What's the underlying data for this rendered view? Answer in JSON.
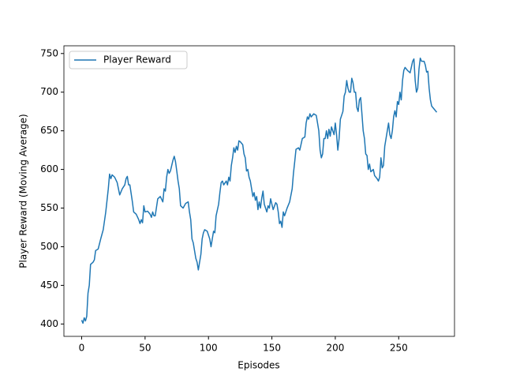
{
  "chart_data": {
    "type": "line",
    "xlabel": "Episodes",
    "ylabel": "Player Reward (Moving Average)",
    "x": [
      0,
      1,
      2,
      3,
      4,
      5,
      6,
      7,
      9,
      10,
      11,
      13,
      15,
      17,
      19,
      21,
      22,
      23,
      24,
      26,
      28,
      29,
      30,
      32,
      34,
      35,
      36,
      37,
      38,
      40,
      41,
      43,
      45,
      46,
      47,
      48,
      49,
      50,
      52,
      54,
      55,
      56,
      57,
      58,
      60,
      62,
      64,
      65,
      66,
      67,
      68,
      69,
      70,
      72,
      73,
      74,
      75,
      76,
      77,
      78,
      80,
      82,
      84,
      85,
      86,
      87,
      88,
      89,
      90,
      91,
      92,
      93,
      94,
      95,
      96,
      97,
      99,
      100,
      101,
      102,
      103,
      104,
      105,
      106,
      108,
      109,
      110,
      111,
      112,
      114,
      115,
      116,
      117,
      118,
      119,
      120,
      121,
      122,
      123,
      124,
      125,
      127,
      128,
      129,
      130,
      131,
      132,
      133,
      135,
      136,
      137,
      138,
      139,
      140,
      141,
      142,
      143,
      144,
      145,
      146,
      147,
      148,
      149,
      150,
      151,
      153,
      154,
      155,
      156,
      157,
      158,
      159,
      160,
      162,
      164,
      166,
      167,
      168,
      169,
      171,
      172,
      174,
      176,
      177,
      178,
      179,
      180,
      181,
      183,
      185,
      186,
      187,
      188,
      189,
      190,
      191,
      192,
      193,
      194,
      195,
      196,
      197,
      198,
      199,
      200,
      201,
      202,
      203,
      204,
      206,
      207,
      208,
      209,
      210,
      211,
      212,
      213,
      214,
      215,
      216,
      217,
      218,
      219,
      220,
      221,
      222,
      223,
      224,
      225,
      226,
      227,
      228,
      230,
      231,
      232,
      233,
      234,
      235,
      236,
      237,
      238,
      239,
      240,
      241,
      242,
      243,
      244,
      245,
      246,
      247,
      248,
      249,
      250,
      251,
      252,
      253,
      254,
      255,
      257,
      259,
      261,
      262,
      263,
      264,
      265,
      266,
      267,
      268,
      270,
      271,
      272,
      273,
      274,
      275,
      276,
      278,
      280
    ],
    "series": [
      {
        "name": "Player Reward",
        "color": "#1f77b4",
        "values": [
          405,
          401,
          408,
          404,
          410,
          440,
          450,
          477,
          480,
          483,
          495,
          497,
          510,
          522,
          545,
          575,
          594,
          588,
          593,
          590,
          583,
          575,
          567,
          575,
          580,
          588,
          591,
          580,
          580,
          558,
          545,
          542,
          535,
          530,
          535,
          531,
          553,
          545,
          546,
          542,
          538,
          545,
          540,
          540,
          562,
          565,
          558,
          575,
          572,
          590,
          600,
          595,
          598,
          612,
          617,
          610,
          598,
          585,
          575,
          553,
          550,
          556,
          558,
          545,
          535,
          510,
          505,
          495,
          485,
          480,
          470,
          480,
          490,
          510,
          518,
          522,
          520,
          515,
          510,
          500,
          510,
          520,
          518,
          540,
          555,
          570,
          583,
          585,
          580,
          585,
          580,
          590,
          585,
          605,
          615,
          628,
          622,
          630,
          625,
          637,
          636,
          632,
          620,
          615,
          598,
          600,
          590,
          585,
          565,
          570,
          560,
          565,
          548,
          558,
          550,
          563,
          572,
          555,
          550,
          545,
          553,
          550,
          562,
          555,
          548,
          557,
          555,
          545,
          530,
          533,
          525,
          545,
          540,
          550,
          558,
          575,
          595,
          610,
          626,
          628,
          625,
          640,
          642,
          660,
          668,
          665,
          672,
          668,
          672,
          670,
          660,
          650,
          625,
          615,
          620,
          640,
          640,
          650,
          640,
          652,
          643,
          655,
          650,
          645,
          660,
          645,
          625,
          640,
          665,
          675,
          695,
          700,
          715,
          705,
          700,
          700,
          718,
          712,
          700,
          700,
          680,
          675,
          690,
          693,
          672,
          650,
          640,
          620,
          618,
          600,
          607,
          597,
          600,
          592,
          590,
          588,
          585,
          590,
          615,
          602,
          605,
          630,
          640,
          650,
          660,
          645,
          640,
          650,
          668,
          676,
          668,
          688,
          684,
          700,
          690,
          715,
          728,
          732,
          728,
          725,
          740,
          743,
          715,
          700,
          705,
          730,
          744,
          740,
          740,
          735,
          726,
          727,
          705,
          690,
          682,
          678,
          674
        ]
      }
    ],
    "xlim": [
      -14,
      294
    ],
    "ylim": [
      384,
      760
    ],
    "xticks": [
      0,
      50,
      100,
      150,
      200,
      250
    ],
    "yticks": [
      400,
      450,
      500,
      550,
      600,
      650,
      700,
      750
    ],
    "legend": "upper left"
  }
}
